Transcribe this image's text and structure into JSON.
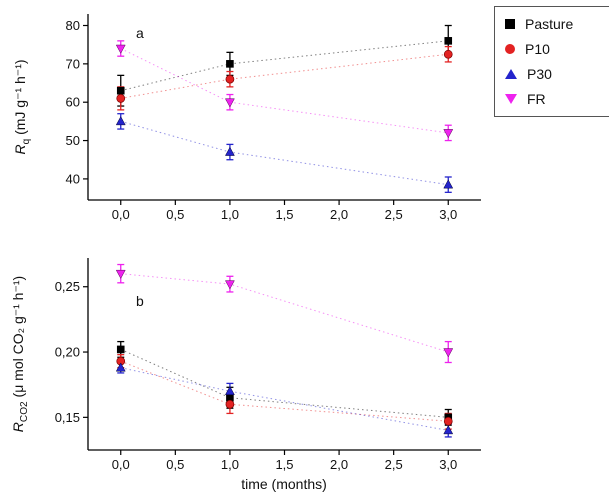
{
  "xlabel": "time (months)",
  "legend": {
    "items": [
      {
        "label": "Pasture",
        "marker": "square",
        "color": "#000000"
      },
      {
        "label": "P10",
        "marker": "circle",
        "color": "#e32222"
      },
      {
        "label": "P30",
        "marker": "triangle-up",
        "color": "#2424cc"
      },
      {
        "label": "FR",
        "marker": "triangle-down",
        "color": "#ee22ee"
      }
    ]
  },
  "chart_data": [
    {
      "type": "scatter",
      "panel_label": "a",
      "ylabel": {
        "main": "R",
        "sub": "q",
        "units": " (mJ g⁻¹ h⁻¹)"
      },
      "x": [
        0,
        1,
        3
      ],
      "xlim": [
        -0.3,
        3.3
      ],
      "ylim": [
        34.5,
        83
      ],
      "xticks": [
        0,
        0.5,
        1,
        1.5,
        2,
        2.5,
        3
      ],
      "xtick_labels": [
        "0,0",
        "0,5",
        "1,0",
        "1,5",
        "2,0",
        "2,5",
        "3,0"
      ],
      "yticks": [
        40,
        50,
        60,
        70,
        80
      ],
      "ytick_labels": [
        "40",
        "50",
        "60",
        "70",
        "80"
      ],
      "grid": false,
      "legend_position": "outside-top-right",
      "series": [
        {
          "name": "Pasture",
          "marker": "square",
          "color": "#000000",
          "values": [
            63,
            70,
            76
          ],
          "errors": [
            4,
            3,
            4
          ]
        },
        {
          "name": "P10",
          "marker": "circle",
          "color": "#e32222",
          "values": [
            61,
            66,
            72.5
          ],
          "errors": [
            3,
            2,
            2
          ]
        },
        {
          "name": "P30",
          "marker": "triangle-up",
          "color": "#2424cc",
          "values": [
            55,
            47,
            38.5
          ],
          "errors": [
            2,
            2,
            2
          ]
        },
        {
          "name": "FR",
          "marker": "triangle-down",
          "color": "#ee22ee",
          "values": [
            74,
            60,
            52
          ],
          "errors": [
            2,
            2,
            2
          ]
        }
      ]
    },
    {
      "type": "scatter",
      "panel_label": "b",
      "ylabel": {
        "main": "R",
        "sub": "CO2",
        "units": " (μ mol CO₂ g⁻¹ h⁻¹)"
      },
      "x": [
        0,
        1,
        3
      ],
      "xlim": [
        -0.3,
        3.3
      ],
      "ylim": [
        0.125,
        0.272
      ],
      "xticks": [
        0,
        0.5,
        1,
        1.5,
        2,
        2.5,
        3
      ],
      "xtick_labels": [
        "0,0",
        "0,5",
        "1,0",
        "1,5",
        "2,0",
        "2,5",
        "3,0"
      ],
      "yticks": [
        0.15,
        0.2,
        0.25
      ],
      "ytick_labels": [
        "0,15",
        "0,20",
        "0,25"
      ],
      "grid": false,
      "series": [
        {
          "name": "Pasture",
          "marker": "square",
          "color": "#000000",
          "values": [
            0.202,
            0.165,
            0.15
          ],
          "errors": [
            0.006,
            0.008,
            0.006
          ]
        },
        {
          "name": "P10",
          "marker": "circle",
          "color": "#e32222",
          "values": [
            0.193,
            0.16,
            0.147
          ],
          "errors": [
            0.005,
            0.007,
            0.006
          ]
        },
        {
          "name": "P30",
          "marker": "triangle-up",
          "color": "#2424cc",
          "values": [
            0.188,
            0.17,
            0.14
          ],
          "errors": [
            0.004,
            0.006,
            0.005
          ]
        },
        {
          "name": "FR",
          "marker": "triangle-down",
          "color": "#ee22ee",
          "values": [
            0.26,
            0.252,
            0.2
          ],
          "errors": [
            0.007,
            0.006,
            0.008
          ]
        }
      ]
    }
  ]
}
